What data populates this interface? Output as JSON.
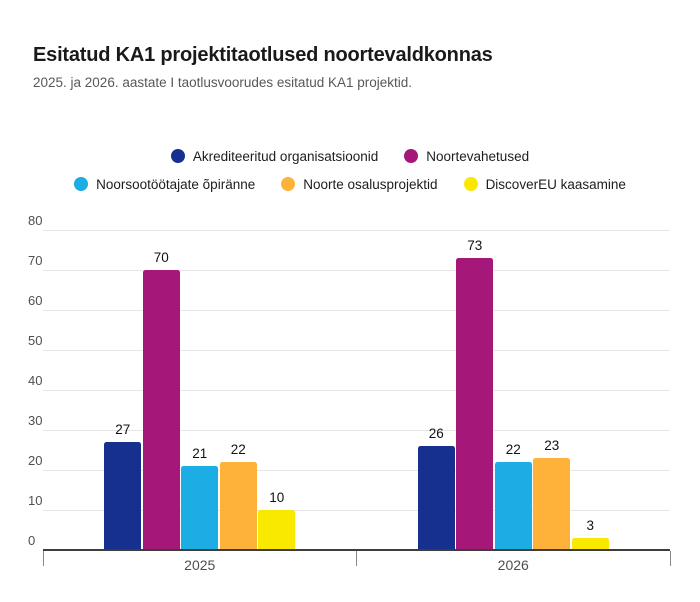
{
  "header": {
    "title": "Esitatud KA1 projektitaotlused noortevaldkonnas",
    "subtitle": "2025. ja 2026. aastate I taotlusvoorudes esitatud KA1 projektid."
  },
  "chart_data": {
    "type": "bar",
    "title": "Esitatud KA1 projektitaotlused noortevaldkonnas",
    "subtitle": "2025. ja 2026. aastate I taotlusvoorudes esitatud KA1 projektid.",
    "categories": [
      "2025",
      "2026"
    ],
    "series": [
      {
        "name": "Akrediteeritud organisatsioonid",
        "color": "#16308F",
        "values": [
          27,
          26
        ]
      },
      {
        "name": "Noortevahetused",
        "color": "#A5187A",
        "values": [
          70,
          73
        ]
      },
      {
        "name": "Noorsootöötajate õpiränne",
        "color": "#1BADE4",
        "values": [
          21,
          22
        ]
      },
      {
        "name": "Noorte osalusprojektid",
        "color": "#FEB23A",
        "values": [
          22,
          23
        ]
      },
      {
        "name": "DiscoverEU kaasamine",
        "color": "#F9E800",
        "values": [
          10,
          3
        ]
      }
    ],
    "ylim": [
      0,
      80
    ],
    "yticks": [
      0,
      10,
      20,
      30,
      40,
      50,
      60,
      70,
      80
    ],
    "grid": true,
    "value_labels": true,
    "legend_position": "top-center",
    "legend_rows": [
      [
        0,
        1
      ],
      [
        2,
        3,
        4
      ]
    ],
    "colors": {
      "axis": "#3d3d3d",
      "gridline": "#e6e6e6",
      "tick_mark": "#8a8a8a",
      "axis_label": "#4f4f4f",
      "value_label": "#111111",
      "title_text": "#1a1a1a",
      "subtitle_text": "#585858"
    }
  }
}
